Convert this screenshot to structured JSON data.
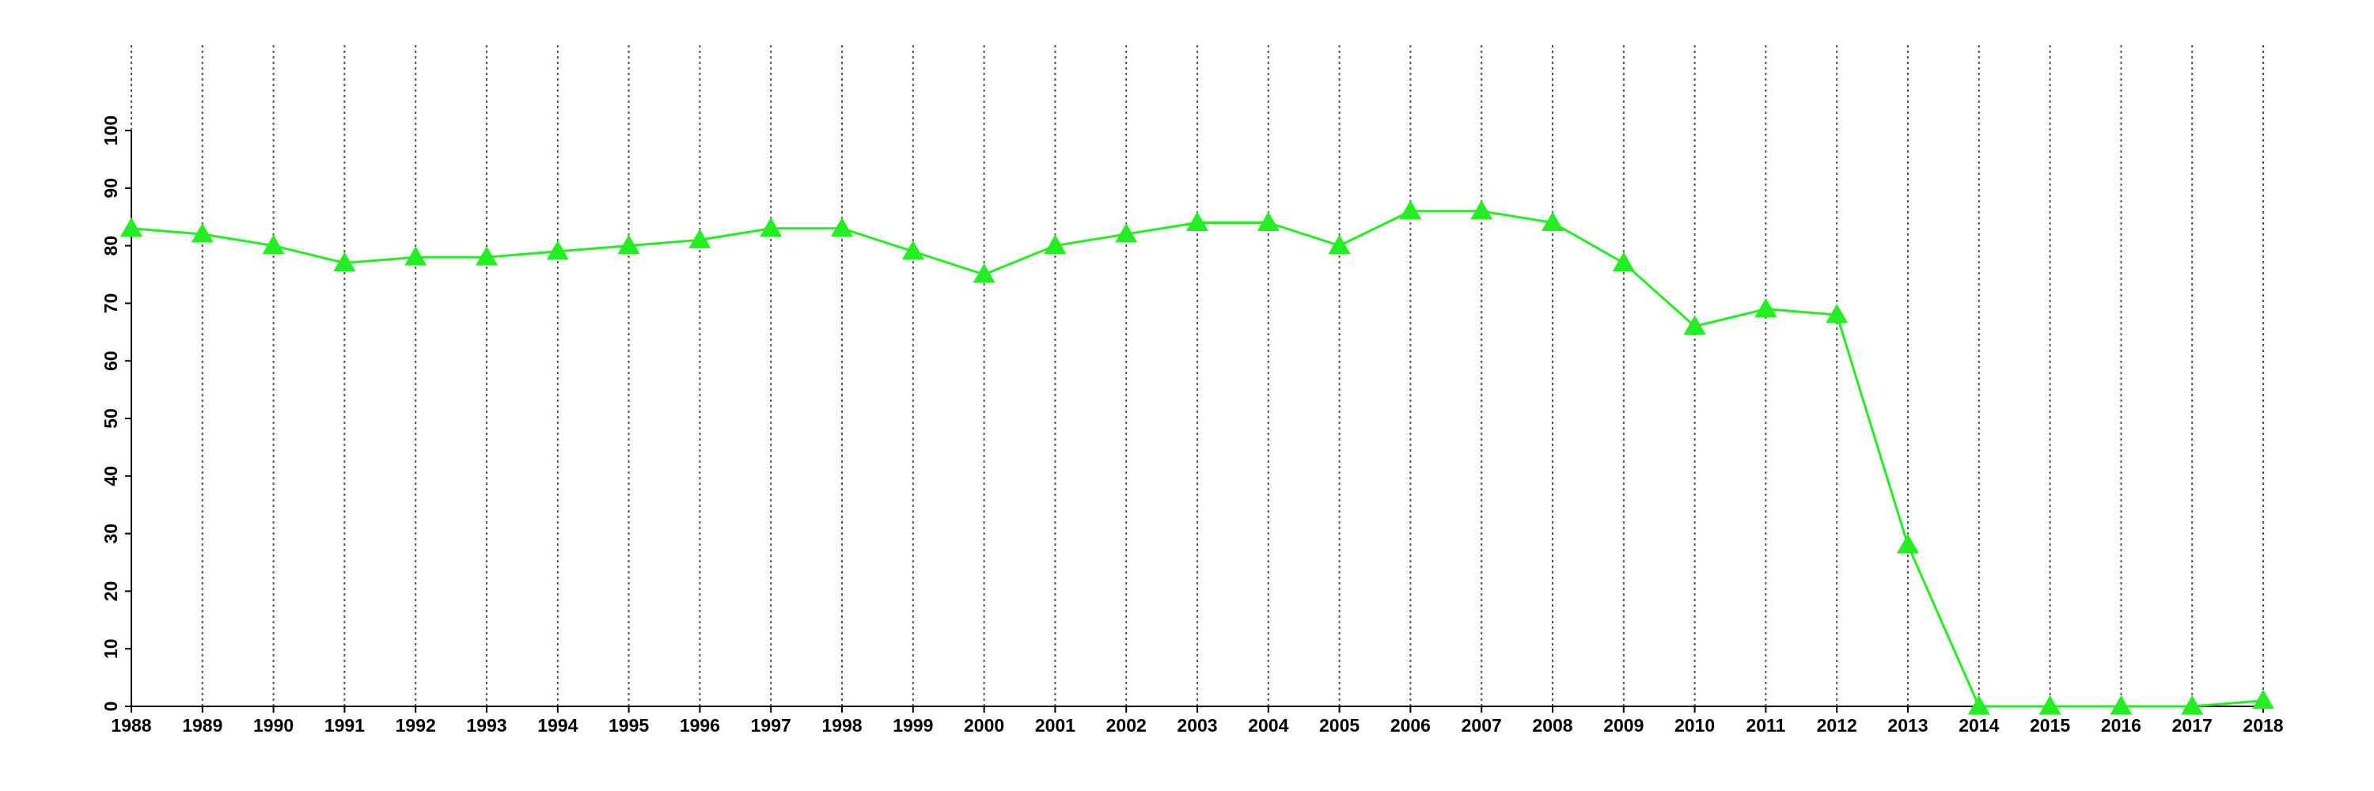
{
  "chart_data": {
    "type": "line",
    "x": [
      1988,
      1989,
      1990,
      1991,
      1992,
      1993,
      1994,
      1995,
      1996,
      1997,
      1998,
      1999,
      2000,
      2001,
      2002,
      2003,
      2004,
      2005,
      2006,
      2007,
      2008,
      2009,
      2010,
      2011,
      2012,
      2013,
      2014,
      2015,
      2016,
      2017,
      2018
    ],
    "series": [
      {
        "color": "#22ee22",
        "marker": "triangle",
        "values": [
          83,
          82,
          80,
          77,
          78,
          78,
          79,
          80,
          81,
          83,
          83,
          79,
          75,
          80,
          82,
          84,
          84,
          80,
          86,
          86,
          84,
          77,
          66,
          69,
          68,
          28,
          0,
          0,
          0,
          0,
          1
        ]
      }
    ],
    "xlim": [
      1988,
      2018
    ],
    "xticks": [
      1988,
      1989,
      1990,
      1991,
      1992,
      1993,
      1994,
      1995,
      1996,
      1997,
      1998,
      1999,
      2000,
      2001,
      2002,
      2003,
      2004,
      2005,
      2006,
      2007,
      2008,
      2009,
      2010,
      2011,
      2012,
      2013,
      2014,
      2015,
      2016,
      2017,
      2018
    ],
    "ylim": [
      0,
      100
    ],
    "yticks": [
      0,
      10,
      20,
      30,
      40,
      50,
      60,
      70,
      80,
      90,
      100
    ],
    "grid": "x"
  }
}
